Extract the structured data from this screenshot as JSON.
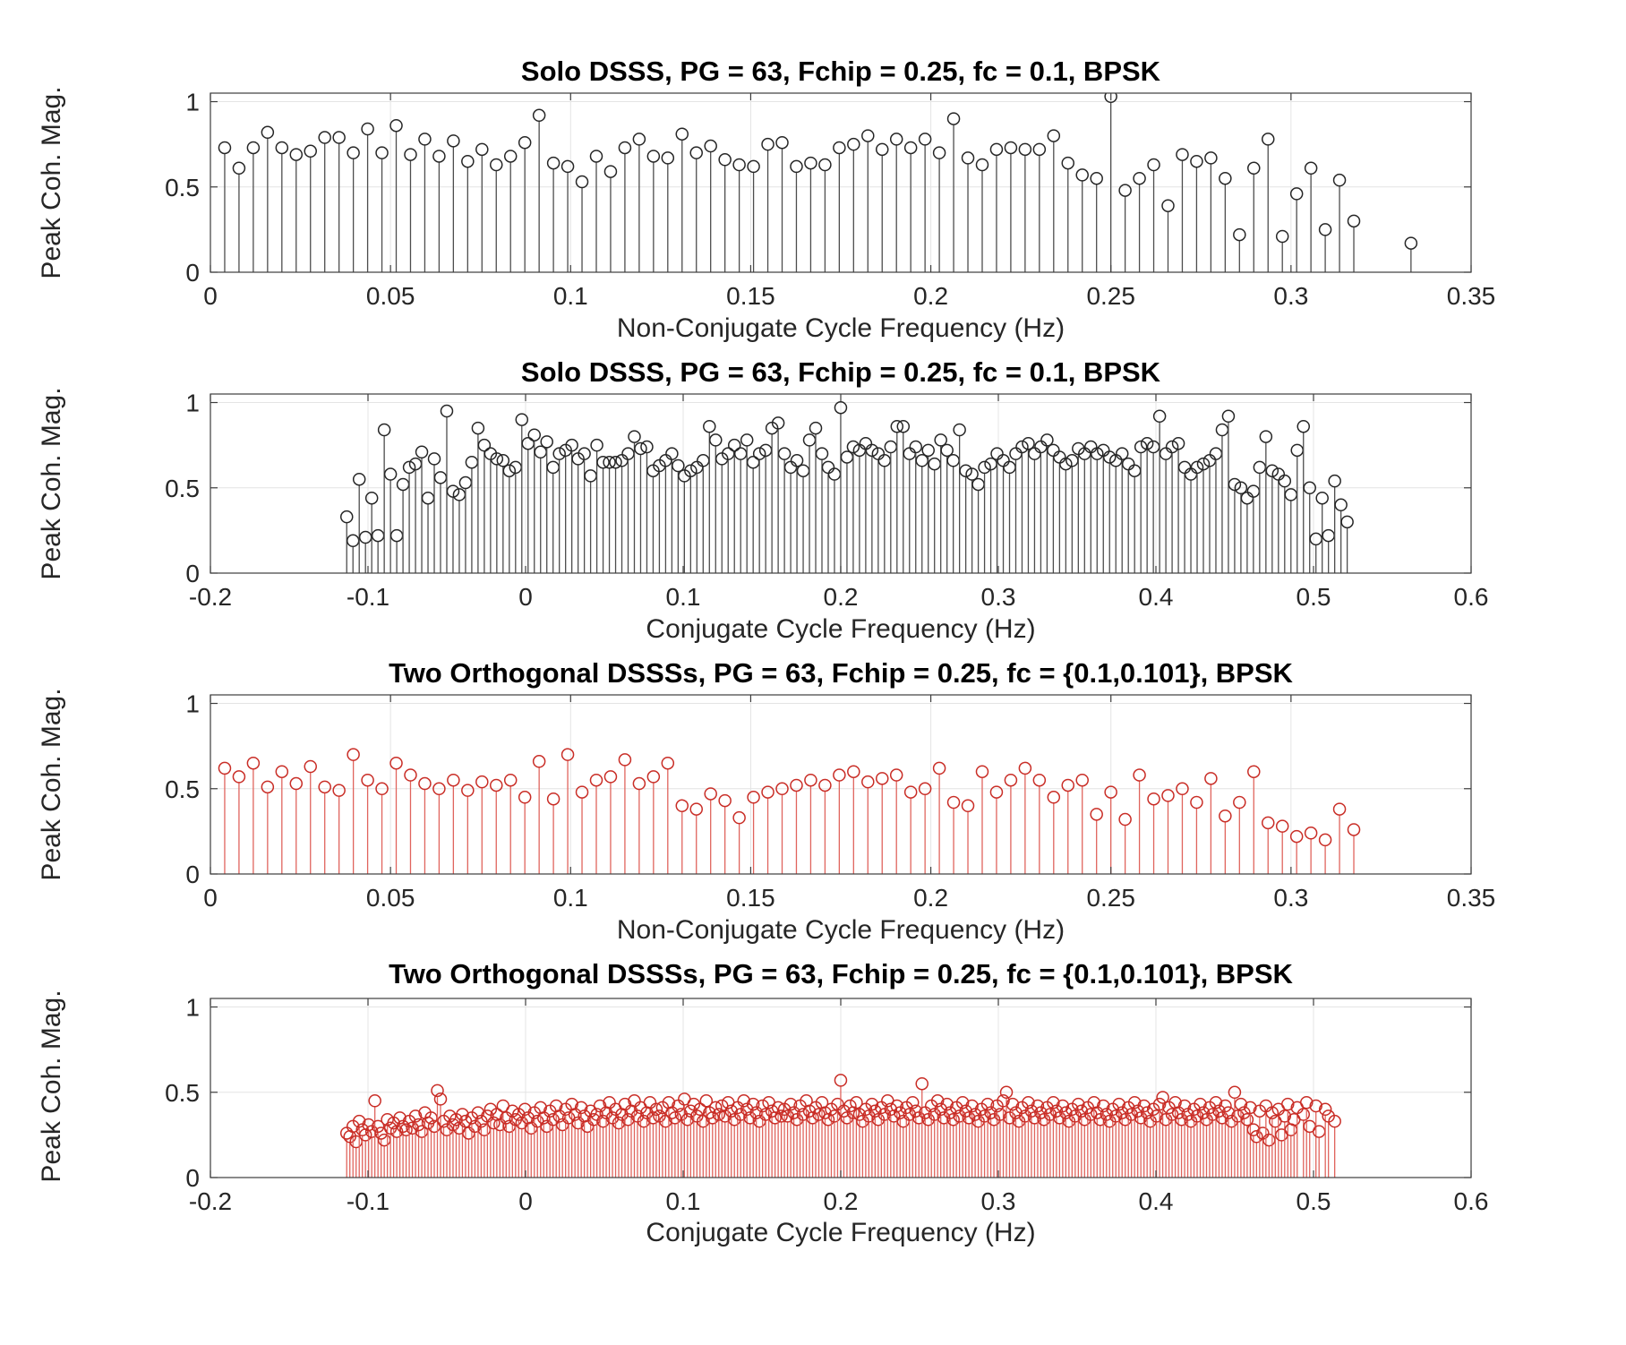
{
  "figure": {
    "background": "#ffffff",
    "grid_color": "#e4e4e4",
    "axis_color": "#3d3d3d",
    "tick_label_color": "#262626"
  },
  "chart_data": [
    {
      "type": "stem",
      "title": "Solo DSSS, PG = 63, Fchip = 0.25, fc = 0.1, BPSK",
      "xlabel": "Non-Conjugate Cycle Frequency (Hz)",
      "ylabel": "Peak Coh. Mag.",
      "legend": "none",
      "grid": true,
      "line_color": "#4d4d4d",
      "marker_color": "#262626",
      "xlim": [
        0,
        0.35
      ],
      "ylim": [
        0,
        1.05
      ],
      "xticks": [
        0,
        0.05,
        0.1,
        0.15,
        0.2,
        0.25,
        0.3,
        0.35
      ],
      "xtick_labels": [
        "0",
        "0.05",
        "0.1",
        "0.15",
        "0.2",
        "0.25",
        "0.3",
        "0.35"
      ],
      "yticks": [
        0,
        0.5,
        1
      ],
      "ytick_labels": [
        "0",
        "0.5",
        "1"
      ],
      "x_start": 0.003968,
      "dx": 0.003968,
      "values": [
        0.73,
        0.61,
        0.73,
        0.82,
        0.73,
        0.69,
        0.71,
        0.79,
        0.79,
        0.7,
        0.84,
        0.7,
        0.86,
        0.69,
        0.78,
        0.68,
        0.77,
        0.65,
        0.72,
        0.63,
        0.68,
        0.76,
        0.92,
        0.64,
        0.62,
        0.53,
        0.68,
        0.59,
        0.73,
        0.78,
        0.68,
        0.67,
        0.81,
        0.7,
        0.74,
        0.66,
        0.63,
        0.62,
        0.75,
        0.76,
        0.62,
        0.64,
        0.63,
        0.73,
        0.75,
        0.8,
        0.72,
        0.78,
        0.73,
        0.78,
        0.7,
        0.9,
        0.67,
        0.63,
        0.72,
        0.73,
        0.72,
        0.72,
        0.8,
        0.64,
        0.57,
        0.55,
        1.03,
        0.48,
        0.55,
        0.63,
        0.39,
        0.69,
        0.65,
        0.67,
        0.55,
        0.22,
        0.61,
        0.78,
        0.21,
        0.46,
        0.61,
        0.25,
        0.54,
        0.3,
        null,
        null,
        null,
        0.17
      ]
    },
    {
      "type": "stem",
      "title": "Solo DSSS, PG = 63, Fchip = 0.25, fc = 0.1, BPSK",
      "xlabel": "Conjugate Cycle Frequency (Hz)",
      "ylabel": "Peak Coh. Mag.",
      "legend": "none",
      "grid": true,
      "line_color": "#4d4d4d",
      "marker_color": "#262626",
      "xlim": [
        -0.2,
        0.6
      ],
      "ylim": [
        0,
        1.05
      ],
      "xticks": [
        -0.2,
        -0.1,
        0,
        0.1,
        0.2,
        0.3,
        0.4,
        0.5,
        0.6
      ],
      "xtick_labels": [
        "-0.2",
        "-0.1",
        "0",
        "0.1",
        "0.2",
        "0.3",
        "0.4",
        "0.5",
        "0.6"
      ],
      "yticks": [
        0,
        0.5,
        1
      ],
      "ytick_labels": [
        "0",
        "0.5",
        "1"
      ],
      "x_start": -0.1135,
      "dx": 0.003968,
      "values": [
        0.33,
        0.19,
        0.55,
        0.21,
        0.44,
        0.22,
        0.84,
        0.58,
        0.22,
        0.52,
        0.62,
        0.64,
        0.71,
        0.44,
        0.67,
        0.56,
        0.95,
        0.48,
        0.46,
        0.53,
        0.65,
        0.85,
        0.75,
        0.7,
        0.67,
        0.66,
        0.6,
        0.62,
        0.9,
        0.76,
        0.81,
        0.71,
        0.77,
        0.62,
        0.7,
        0.72,
        0.75,
        0.67,
        0.7,
        0.57,
        0.75,
        0.65,
        0.65,
        0.65,
        0.66,
        0.7,
        0.8,
        0.73,
        0.74,
        0.6,
        0.63,
        0.66,
        0.7,
        0.63,
        0.57,
        0.6,
        0.62,
        0.66,
        0.86,
        0.78,
        0.67,
        0.7,
        0.75,
        0.7,
        0.78,
        0.65,
        0.7,
        0.72,
        0.85,
        0.88,
        0.7,
        0.62,
        0.66,
        0.6,
        0.78,
        0.85,
        0.7,
        0.62,
        0.58,
        0.97,
        0.68,
        0.74,
        0.72,
        0.76,
        0.72,
        0.7,
        0.66,
        0.74,
        0.86,
        0.86,
        0.7,
        0.74,
        0.66,
        0.72,
        0.64,
        0.78,
        0.72,
        0.66,
        0.84,
        0.6,
        0.58,
        0.52,
        0.62,
        0.64,
        0.7,
        0.66,
        0.62,
        0.7,
        0.74,
        0.76,
        0.7,
        0.74,
        0.78,
        0.72,
        0.68,
        0.64,
        0.66,
        0.73,
        0.7,
        0.74,
        0.7,
        0.72,
        0.68,
        0.66,
        0.7,
        0.64,
        0.6,
        0.74,
        0.76,
        0.74,
        0.92,
        0.7,
        0.74,
        0.76,
        0.62,
        0.58,
        0.62,
        0.64,
        0.66,
        0.7,
        0.84,
        0.92,
        0.52,
        0.5,
        0.44,
        0.48,
        0.62,
        0.8,
        0.6,
        0.58,
        0.54,
        0.46,
        0.72,
        0.86,
        0.5,
        0.2,
        0.44,
        0.22,
        0.54,
        0.4,
        0.3
      ]
    },
    {
      "type": "stem",
      "title": "Two Orthogonal DSSSs, PG = 63, Fchip = 0.25, fc = {0.1,0.101}, BPSK",
      "xlabel": "Non-Conjugate Cycle Frequency (Hz)",
      "ylabel": "Peak Coh. Mag.",
      "legend": "none",
      "grid": true,
      "line_color": "#e0645d",
      "marker_color": "#c92d26",
      "xlim": [
        0,
        0.35
      ],
      "ylim": [
        0,
        1.05
      ],
      "xticks": [
        0,
        0.05,
        0.1,
        0.15,
        0.2,
        0.25,
        0.3,
        0.35
      ],
      "xtick_labels": [
        "0",
        "0.05",
        "0.1",
        "0.15",
        "0.2",
        "0.25",
        "0.3",
        "0.35"
      ],
      "yticks": [
        0,
        0.5,
        1
      ],
      "ytick_labels": [
        "0",
        "0.5",
        "1"
      ],
      "x_start": 0.003968,
      "dx": 0.003968,
      "values": [
        0.62,
        0.57,
        0.65,
        0.51,
        0.6,
        0.53,
        0.63,
        0.51,
        0.49,
        0.7,
        0.55,
        0.5,
        0.65,
        0.58,
        0.53,
        0.5,
        0.55,
        0.49,
        0.54,
        0.52,
        0.55,
        0.45,
        0.66,
        0.44,
        0.7,
        0.48,
        0.55,
        0.57,
        0.67,
        0.53,
        0.57,
        0.65,
        0.4,
        0.38,
        0.47,
        0.43,
        0.33,
        0.45,
        0.48,
        0.5,
        0.52,
        0.55,
        0.52,
        0.58,
        0.6,
        0.54,
        0.56,
        0.58,
        0.48,
        0.5,
        0.62,
        0.42,
        0.4,
        0.6,
        0.48,
        0.55,
        0.62,
        0.55,
        0.45,
        0.52,
        0.55,
        0.35,
        0.48,
        0.32,
        0.58,
        0.44,
        0.46,
        0.5,
        0.42,
        0.56,
        0.34,
        0.42,
        0.6,
        0.3,
        0.28,
        0.22,
        0.24,
        0.2,
        0.38,
        0.26
      ]
    },
    {
      "type": "stem",
      "title": "Two Orthogonal DSSSs, PG = 63, Fchip = 0.25, fc = {0.1,0.101}, BPSK",
      "xlabel": "Conjugate Cycle Frequency (Hz)",
      "ylabel": "Peak Coh. Mag.",
      "legend": "none",
      "grid": true,
      "line_color": "#e0645d",
      "marker_color": "#c92d26",
      "xlim": [
        -0.2,
        0.6
      ],
      "ylim": [
        0,
        1.05
      ],
      "xticks": [
        -0.2,
        -0.1,
        0,
        0.1,
        0.2,
        0.3,
        0.4,
        0.5,
        0.6
      ],
      "xtick_labels": [
        "-0.2",
        "-0.1",
        "0",
        "0.1",
        "0.2",
        "0.3",
        "0.4",
        "0.5",
        "0.6"
      ],
      "yticks": [
        0,
        0.5,
        1
      ],
      "ytick_labels": [
        "0",
        "0.5",
        "1"
      ],
      "x_start": -0.1135,
      "dx": 0.001984,
      "values": [
        0.26,
        0.24,
        0.3,
        0.21,
        0.33,
        0.28,
        0.25,
        0.31,
        0.27,
        0.45,
        0.3,
        0.26,
        0.22,
        0.34,
        0.29,
        0.32,
        0.27,
        0.35,
        0.3,
        0.28,
        0.33,
        0.29,
        0.36,
        0.31,
        0.27,
        0.38,
        0.32,
        0.35,
        0.3,
        0.51,
        0.46,
        0.33,
        0.28,
        0.36,
        0.31,
        0.34,
        0.29,
        0.37,
        0.33,
        0.26,
        0.35,
        0.3,
        0.38,
        0.33,
        0.28,
        0.36,
        0.4,
        0.32,
        0.37,
        0.31,
        0.42,
        0.35,
        0.3,
        0.39,
        0.34,
        0.37,
        0.32,
        0.4,
        0.35,
        0.29,
        0.38,
        0.33,
        0.41,
        0.35,
        0.3,
        0.39,
        0.34,
        0.42,
        0.36,
        0.31,
        0.4,
        0.35,
        0.43,
        0.37,
        0.32,
        0.41,
        0.36,
        0.3,
        0.39,
        0.34,
        0.37,
        0.42,
        0.33,
        0.38,
        0.44,
        0.35,
        0.4,
        0.32,
        0.37,
        0.43,
        0.34,
        0.39,
        0.45,
        0.36,
        0.41,
        0.33,
        0.38,
        0.44,
        0.35,
        0.4,
        0.36,
        0.41,
        0.33,
        0.44,
        0.38,
        0.35,
        0.42,
        0.37,
        0.46,
        0.34,
        0.39,
        0.43,
        0.36,
        0.4,
        0.33,
        0.45,
        0.38,
        0.35,
        0.41,
        0.37,
        0.42,
        0.36,
        0.44,
        0.39,
        0.34,
        0.41,
        0.37,
        0.45,
        0.4,
        0.35,
        0.43,
        0.38,
        0.33,
        0.42,
        0.37,
        0.44,
        0.39,
        0.35,
        0.41,
        0.36,
        0.4,
        0.36,
        0.43,
        0.38,
        0.34,
        0.42,
        0.37,
        0.45,
        0.39,
        0.35,
        0.41,
        0.37,
        0.44,
        0.38,
        0.34,
        0.4,
        0.36,
        0.43,
        0.57,
        0.39,
        0.35,
        0.42,
        0.38,
        0.44,
        0.37,
        0.33,
        0.4,
        0.36,
        0.43,
        0.39,
        0.34,
        0.41,
        0.37,
        0.45,
        0.4,
        0.36,
        0.42,
        0.38,
        0.33,
        0.41,
        0.37,
        0.44,
        0.39,
        0.35,
        0.55,
        0.38,
        0.34,
        0.42,
        0.37,
        0.45,
        0.4,
        0.35,
        0.43,
        0.38,
        0.34,
        0.41,
        0.36,
        0.44,
        0.39,
        0.35,
        0.42,
        0.37,
        0.33,
        0.4,
        0.36,
        0.43,
        0.38,
        0.34,
        0.42,
        0.37,
        0.45,
        0.5,
        0.35,
        0.43,
        0.38,
        0.33,
        0.41,
        0.36,
        0.44,
        0.39,
        0.35,
        0.42,
        0.38,
        0.34,
        0.41,
        0.37,
        0.44,
        0.39,
        0.35,
        0.42,
        0.38,
        0.33,
        0.4,
        0.36,
        0.43,
        0.39,
        0.34,
        0.41,
        0.37,
        0.44,
        0.38,
        0.34,
        0.42,
        0.37,
        0.33,
        0.4,
        0.36,
        0.43,
        0.38,
        0.34,
        0.41,
        0.37,
        0.44,
        0.39,
        0.35,
        0.42,
        0.38,
        0.33,
        0.4,
        0.36,
        0.43,
        0.47,
        0.34,
        0.41,
        0.37,
        0.44,
        0.38,
        0.34,
        0.42,
        0.37,
        0.33,
        0.4,
        0.36,
        0.43,
        0.38,
        0.34,
        0.41,
        0.37,
        0.44,
        0.39,
        0.35,
        0.42,
        0.38,
        0.33,
        0.5,
        0.36,
        0.43,
        0.38,
        0.34,
        0.41,
        0.28,
        0.24,
        0.39,
        0.26,
        0.42,
        0.22,
        0.38,
        0.33,
        0.4,
        0.25,
        0.36,
        0.43,
        0.28,
        0.34,
        0.41,
        null,
        0.37,
        0.44,
        0.3,
        null,
        0.42,
        0.27,
        null,
        0.4,
        0.36,
        null,
        0.33
      ]
    }
  ]
}
